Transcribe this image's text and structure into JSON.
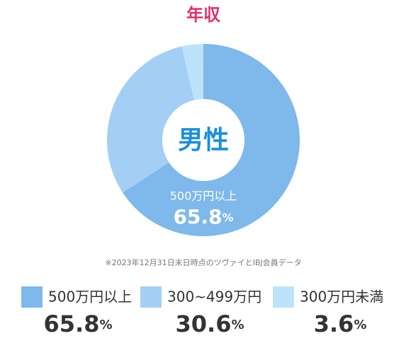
{
  "chart_data": {
    "type": "donut",
    "title": "年収",
    "center_label": "男性",
    "note": "※2023年12月31日末日時点のツヴァイとIBJ会員データ",
    "categories": [
      "500万円以上",
      "300~499万円",
      "300万円未満"
    ],
    "values": [
      65.8,
      30.6,
      3.6
    ],
    "value_labels": [
      "65.8%",
      "30.6%",
      "3.6%"
    ],
    "colors": [
      "#7fb8ea",
      "#a3cff5",
      "#bde3fb"
    ]
  }
}
